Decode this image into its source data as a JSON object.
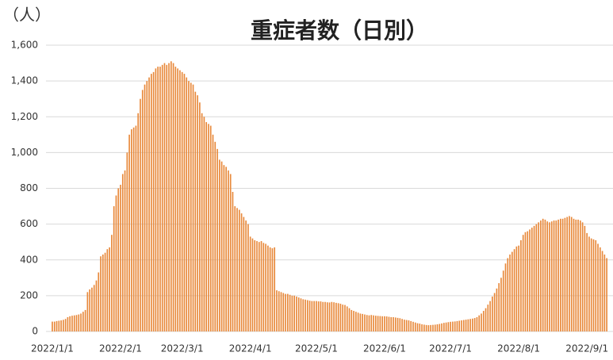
{
  "chart_data": {
    "type": "bar",
    "title": "重症者数（日別）",
    "unit_label": "（人）",
    "color": "#e8893b",
    "ylim": [
      0,
      1600
    ],
    "yticks": [
      0,
      200,
      400,
      600,
      800,
      {
        "value": 1000,
        "label": "1,000"
      },
      {
        "value": 1200,
        "label": "1,200"
      },
      {
        "value": 1400,
        "label": "1,400"
      },
      {
        "value": 1600,
        "label": "1,600"
      }
    ],
    "grid": true,
    "categories": [
      "2022/1/1",
      null,
      null,
      null,
      null,
      null,
      null,
      null,
      null,
      null,
      null,
      null,
      null,
      null,
      null,
      null,
      null,
      null,
      null,
      null,
      null,
      null,
      null,
      null,
      null,
      null,
      null,
      null,
      null,
      null,
      null,
      "2022/2/1",
      null,
      null,
      null,
      null,
      null,
      null,
      null,
      null,
      null,
      null,
      null,
      null,
      null,
      null,
      null,
      null,
      null,
      null,
      null,
      null,
      null,
      null,
      null,
      null,
      null,
      null,
      null,
      "2022/3/1",
      null,
      null,
      null,
      null,
      null,
      null,
      null,
      null,
      null,
      null,
      null,
      null,
      null,
      null,
      null,
      null,
      null,
      null,
      null,
      null,
      null,
      null,
      null,
      null,
      null,
      null,
      null,
      null,
      null,
      null,
      "2022/4/1",
      null,
      null,
      null,
      null,
      null,
      null,
      null,
      null,
      null,
      null,
      null,
      null,
      null,
      null,
      null,
      null,
      null,
      null,
      null,
      null,
      null,
      null,
      null,
      null,
      null,
      null,
      null,
      null,
      null,
      "2022/5/1",
      null,
      null,
      null,
      null,
      null,
      null,
      null,
      null,
      null,
      null,
      null,
      null,
      null,
      null,
      null,
      null,
      null,
      null,
      null,
      null,
      null,
      null,
      null,
      null,
      null,
      null,
      null,
      null,
      null,
      null,
      "2022/6/1",
      null,
      null,
      null,
      null,
      null,
      null,
      null,
      null,
      null,
      null,
      null,
      null,
      null,
      null,
      null,
      null,
      null,
      null,
      null,
      null,
      null,
      null,
      null,
      null,
      null,
      null,
      null,
      null,
      null,
      "2022/7/1",
      null,
      null,
      null,
      null,
      null,
      null,
      null,
      null,
      null,
      null,
      null,
      null,
      null,
      null,
      null,
      null,
      null,
      null,
      null,
      null,
      null,
      null,
      null,
      null,
      null,
      null,
      null,
      null,
      null,
      null,
      "2022/8/1",
      null,
      null,
      null,
      null,
      null,
      null,
      null,
      null,
      null,
      null,
      null,
      null,
      null,
      null,
      null,
      null,
      null,
      null,
      null,
      null,
      null,
      null,
      null,
      null,
      null,
      null,
      null,
      null,
      null,
      null,
      "2022/9/1",
      null,
      null,
      null,
      null,
      null,
      null,
      null,
      null,
      null
    ],
    "values": [
      55,
      55,
      58,
      60,
      62,
      65,
      70,
      80,
      85,
      88,
      90,
      92,
      95,
      100,
      110,
      120,
      220,
      235,
      245,
      260,
      285,
      330,
      420,
      430,
      440,
      460,
      470,
      540,
      700,
      760,
      800,
      820,
      880,
      900,
      1000,
      1100,
      1130,
      1140,
      1150,
      1220,
      1300,
      1350,
      1380,
      1400,
      1420,
      1440,
      1450,
      1470,
      1480,
      1480,
      1490,
      1500,
      1490,
      1500,
      1510,
      1500,
      1480,
      1470,
      1460,
      1450,
      1440,
      1420,
      1400,
      1390,
      1380,
      1340,
      1320,
      1280,
      1220,
      1200,
      1170,
      1160,
      1150,
      1100,
      1060,
      1020,
      960,
      950,
      930,
      920,
      900,
      880,
      780,
      700,
      690,
      680,
      660,
      640,
      620,
      600,
      530,
      520,
      510,
      505,
      500,
      505,
      495,
      490,
      480,
      470,
      465,
      470,
      230,
      225,
      220,
      215,
      210,
      210,
      205,
      200,
      200,
      195,
      190,
      185,
      180,
      178,
      175,
      172,
      170,
      170,
      170,
      168,
      168,
      165,
      165,
      163,
      162,
      165,
      163,
      160,
      158,
      155,
      150,
      148,
      140,
      130,
      120,
      115,
      110,
      105,
      100,
      98,
      95,
      92,
      90,
      92,
      90,
      88,
      87,
      86,
      85,
      85,
      84,
      82,
      80,
      80,
      78,
      76,
      74,
      70,
      66,
      64,
      62,
      58,
      54,
      50,
      46,
      44,
      40,
      38,
      36,
      35,
      36,
      37,
      38,
      40,
      42,
      45,
      48,
      50,
      52,
      54,
      55,
      56,
      58,
      60,
      62,
      64,
      66,
      68,
      70,
      72,
      75,
      80,
      90,
      100,
      115,
      130,
      150,
      170,
      195,
      215,
      240,
      270,
      300,
      340,
      380,
      410,
      430,
      445,
      460,
      475,
      480,
      510,
      540,
      555,
      560,
      570,
      580,
      590,
      600,
      610,
      620,
      630,
      625,
      615,
      610,
      615,
      620,
      620,
      625,
      630,
      630,
      635,
      640,
      645,
      640,
      630,
      625,
      625,
      620,
      610,
      590,
      550,
      530,
      520,
      515,
      510,
      490,
      470,
      450,
      430,
      410
    ]
  }
}
